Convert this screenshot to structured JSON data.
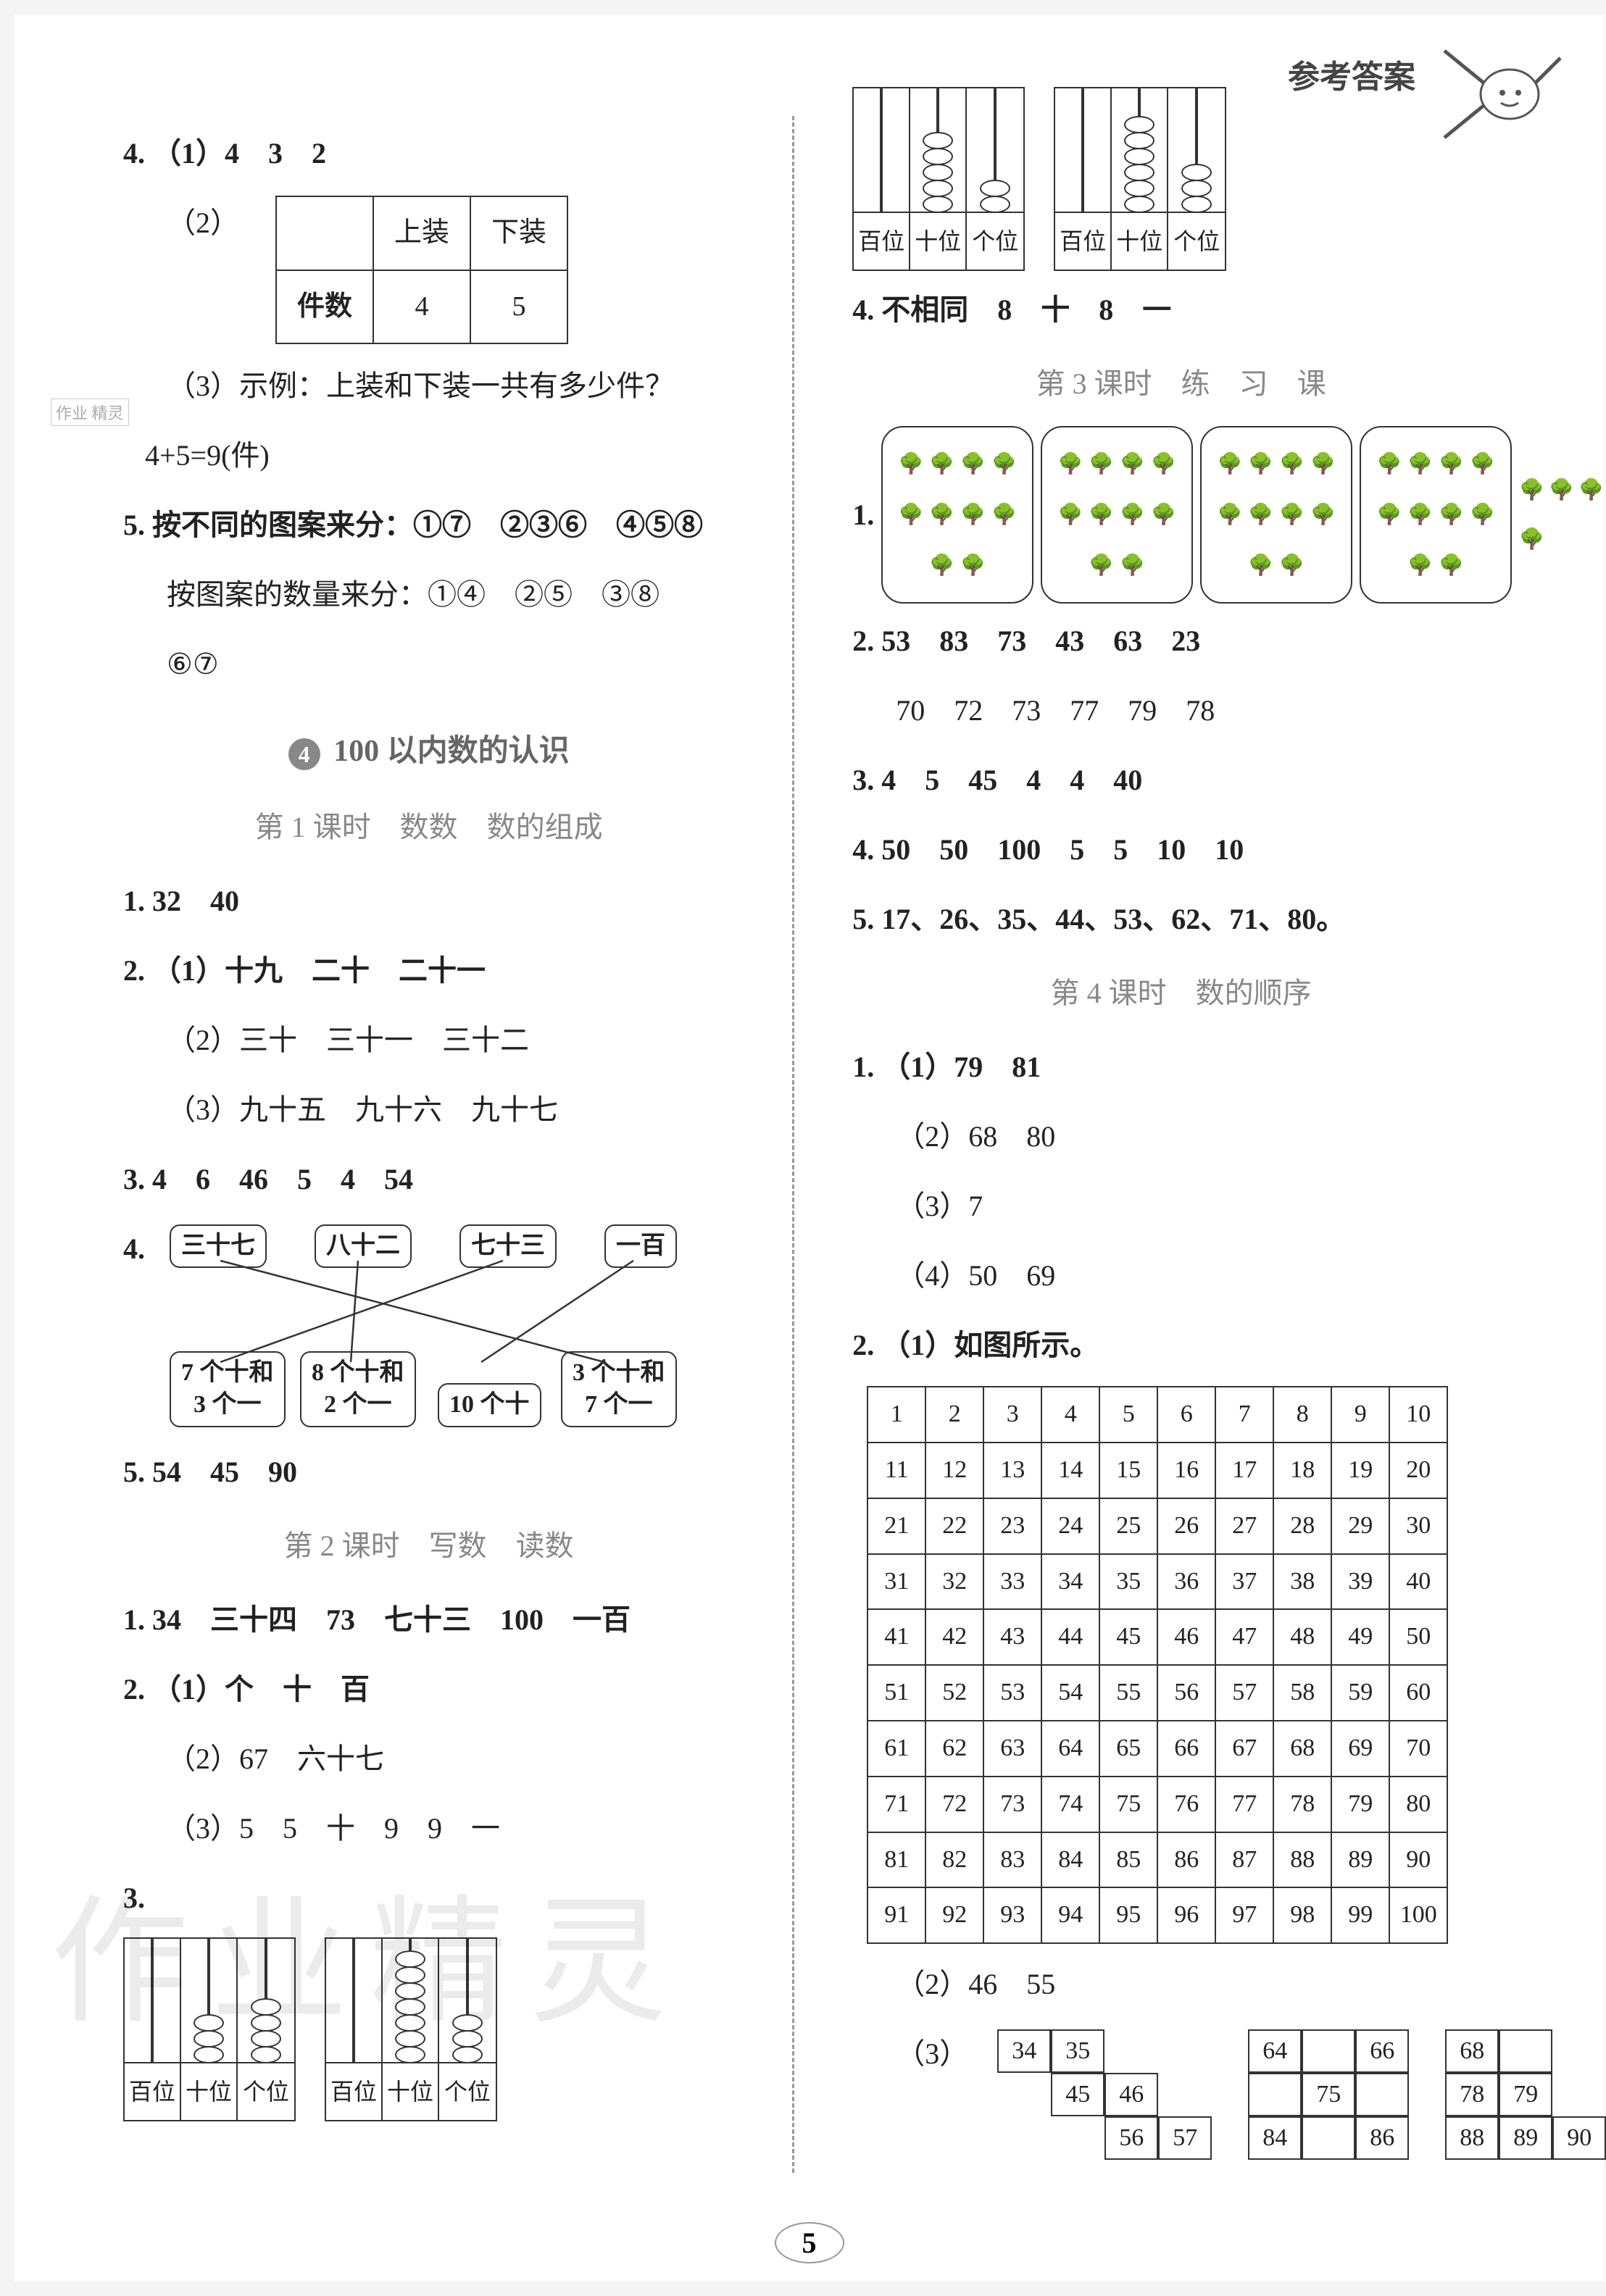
{
  "header": {
    "label": "参考答案"
  },
  "page_number": "5",
  "watermark": "作业精灵",
  "stamp": "作业\n精灵",
  "left": {
    "q4_1": "4. （1）4　3　2",
    "q4_2_label": "（2）",
    "q4_2_table": {
      "cols": [
        "",
        "上装",
        "下装"
      ],
      "row_label": "件数",
      "row_vals": [
        "4",
        "5"
      ]
    },
    "q4_3a": "（3）示例：上装和下装一共有多少件？",
    "q4_3b": "4+5=9(件)",
    "q5a": "5. 按不同的图案来分：①⑦　②③⑥　④⑤⑧",
    "q5b": "按图案的数量来分：①④　②⑤　③⑧",
    "q5c": "⑥⑦",
    "section4_num": "4",
    "section4_title": "100 以内数的认识",
    "lesson1": "第 1 课时　数数　数的组成",
    "l1_1": "1. 32　40",
    "l1_2_1": "2. （1）十九　二十　二十一",
    "l1_2_2": "（2）三十　三十一　三十二",
    "l1_2_3": "（3）九十五　九十六　九十七",
    "l1_3": "3. 4　6　46　5　4　54",
    "l1_4_label": "4.",
    "l1_4_top": [
      "三十七",
      "八十二",
      "七十三",
      "一百"
    ],
    "l1_4_bot": [
      "7 个十和\n3 个一",
      "8 个十和\n2 个一",
      "10 个十",
      "3 个十和\n7 个一"
    ],
    "l1_5": "5. 54　45　90",
    "lesson2": "第 2 课时　写数　读数",
    "l2_1": "1. 34　三十四　73　七十三　100　一百",
    "l2_2_1": "2. （1）个　十　百",
    "l2_2_2": "（2）67　六十七",
    "l2_2_3": "（3）5　5　十　9　9　一",
    "l2_3_label": "3.",
    "l2_3_abacus": [
      {
        "labels": [
          "百位",
          "十位",
          "个位"
        ],
        "beads": [
          0,
          3,
          4
        ]
      },
      {
        "labels": [
          "百位",
          "十位",
          "个位"
        ],
        "beads": [
          0,
          7,
          3
        ]
      }
    ]
  },
  "right": {
    "top_abacus": [
      {
        "labels": [
          "百位",
          "十位",
          "个位"
        ],
        "beads": [
          0,
          5,
          2
        ]
      },
      {
        "labels": [
          "百位",
          "十位",
          "个位"
        ],
        "beads": [
          0,
          6,
          3
        ]
      }
    ],
    "r4": "4. 不相同　8　十　8　一",
    "lesson3": "第 3 课时　练　习　课",
    "l3_1_label": "1.",
    "l3_1_trees": [
      10,
      10,
      10,
      10,
      4
    ],
    "l3_2a": "2. 53　83　73　43　63　23",
    "l3_2b": "70　72　73　77　79　78",
    "l3_3": "3. 4　5　45　4　4　40",
    "l3_4": "4. 50　50　100　5　5　10　10",
    "l3_5": "5. 17、26、35、44、53、62、71、80。",
    "lesson4": "第 4 课时　数的顺序",
    "l4_1_1": "1. （1）79　81",
    "l4_1_2": "（2）68　80",
    "l4_1_3": "（3）7",
    "l4_1_4": "（4）50　69",
    "l4_2_1": "2. （1）如图所示。",
    "l4_2_2": "（2）46　55",
    "l4_2_3_label": "（3）",
    "stair1": [
      "34",
      "35",
      "",
      "",
      "45",
      "46",
      "",
      "",
      "56",
      "",
      "",
      "57"
    ],
    "stair2": [
      "64",
      "",
      "66",
      "",
      "75",
      "",
      "84",
      "",
      "86"
    ],
    "stair3": [
      "68",
      "",
      "",
      "78",
      "79",
      "",
      "88",
      "89",
      "90"
    ]
  },
  "colors": {
    "text": "#222222",
    "muted": "#888888",
    "border": "#333333",
    "circle": "#888888"
  }
}
